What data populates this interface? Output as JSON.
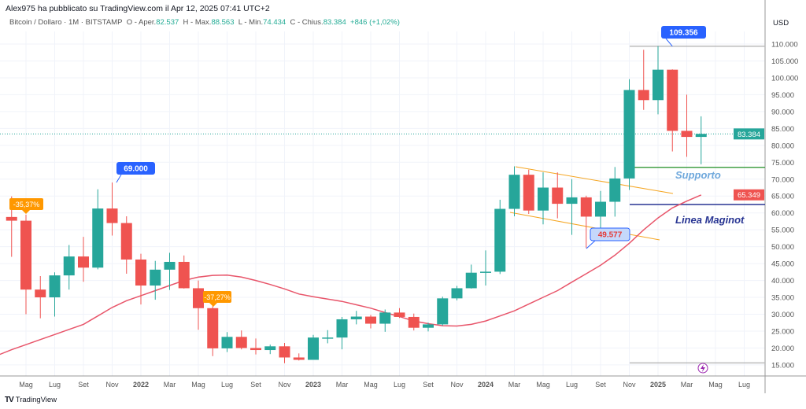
{
  "header": {
    "published": "Alex975 ha pubblicato su TradingView.com il Apr 12, 2025 07:41 UTC+2",
    "symbol": "Bitcoin / Dollaro · 1M · BITSTAMP",
    "open_label": "O - Aper.",
    "open": "82.537",
    "high_label": "H - Max.",
    "high": "88.563",
    "low_label": "L - Min.",
    "low": "74.434",
    "close_label": "C - Chius.",
    "close": "83.384",
    "change": "+846 (+1,02%)"
  },
  "branding": {
    "logo": "TradingView"
  },
  "colors": {
    "up": "#26a69a",
    "down": "#ef5350",
    "ma": "#e8556a",
    "accent": "#2962ff"
  },
  "chart_data": {
    "type": "candlestick",
    "currency": "USD",
    "ylim": [
      15000,
      110000
    ],
    "yticks": [
      "110.000",
      "105.000",
      "100.000",
      "95.000",
      "90.000",
      "85.000",
      "80.000",
      "75.000",
      "70.000",
      "65.000",
      "60.000",
      "55.000",
      "50.000",
      "45.000",
      "40.000",
      "35.000",
      "30.000",
      "25.000",
      "20.000",
      "15.000"
    ],
    "xticks": [
      [
        "Mag",
        0
      ],
      [
        "Lug",
        2
      ],
      [
        "Set",
        4
      ],
      [
        "Nov",
        6
      ],
      [
        "2022",
        8
      ],
      [
        "Mar",
        10
      ],
      [
        "Mag",
        12
      ],
      [
        "Lug",
        14
      ],
      [
        "Set",
        16
      ],
      [
        "Nov",
        18
      ],
      [
        "2023",
        20
      ],
      [
        "Mar",
        22
      ],
      [
        "Mag",
        24
      ],
      [
        "Lug",
        26
      ],
      [
        "Set",
        28
      ],
      [
        "Nov",
        30
      ],
      [
        "2024",
        32
      ],
      [
        "Mar",
        34
      ],
      [
        "Mag",
        36
      ],
      [
        "Lug",
        38
      ],
      [
        "Set",
        40
      ],
      [
        "Nov",
        42
      ],
      [
        "2025",
        44
      ],
      [
        "Mar",
        46
      ],
      [
        "Mag",
        48
      ],
      [
        "Lug",
        50
      ]
    ],
    "candles_start": -1,
    "ohlc": [
      [
        58.8,
        64.9,
        47.0,
        57.7
      ],
      [
        57.7,
        59.5,
        30.0,
        37.3
      ],
      [
        37.3,
        41.3,
        28.8,
        35.0
      ],
      [
        35.0,
        42.4,
        29.3,
        41.5
      ],
      [
        41.5,
        50.5,
        37.3,
        47.1
      ],
      [
        47.1,
        52.9,
        39.6,
        43.8
      ],
      [
        43.8,
        67.0,
        43.3,
        61.3
      ],
      [
        61.3,
        69.0,
        53.3,
        57.0
      ],
      [
        57.0,
        59.0,
        42.0,
        46.2
      ],
      [
        46.2,
        47.9,
        32.9,
        38.5
      ],
      [
        38.5,
        45.8,
        34.3,
        43.2
      ],
      [
        43.2,
        48.2,
        37.2,
        45.5
      ],
      [
        45.5,
        47.4,
        37.6,
        37.7
      ],
      [
        37.7,
        40.0,
        25.4,
        31.8
      ],
      [
        31.8,
        32.4,
        17.6,
        19.9
      ],
      [
        19.9,
        24.7,
        18.8,
        23.3
      ],
      [
        23.3,
        25.2,
        19.6,
        20.0
      ],
      [
        20.0,
        22.8,
        18.1,
        19.4
      ],
      [
        19.4,
        21.0,
        18.2,
        20.5
      ],
      [
        20.5,
        21.5,
        15.5,
        17.2
      ],
      [
        17.2,
        18.4,
        16.3,
        16.5
      ],
      [
        16.5,
        23.9,
        16.5,
        23.1
      ],
      [
        23.1,
        25.3,
        21.4,
        23.1
      ],
      [
        23.1,
        29.2,
        19.6,
        28.5
      ],
      [
        28.5,
        31.0,
        27.0,
        29.3
      ],
      [
        29.3,
        29.8,
        25.8,
        27.2
      ],
      [
        27.2,
        31.4,
        24.8,
        30.5
      ],
      [
        30.5,
        31.8,
        28.9,
        29.2
      ],
      [
        29.2,
        30.2,
        25.2,
        26.0
      ],
      [
        26.0,
        27.5,
        24.9,
        27.0
      ],
      [
        27.0,
        35.2,
        26.6,
        34.7
      ],
      [
        34.7,
        38.4,
        34.1,
        37.7
      ],
      [
        37.7,
        44.7,
        37.6,
        42.3
      ],
      [
        42.3,
        48.9,
        38.5,
        42.6
      ],
      [
        42.6,
        63.9,
        41.9,
        61.2
      ],
      [
        61.2,
        73.8,
        59.0,
        71.3
      ],
      [
        71.3,
        72.8,
        59.7,
        60.7
      ],
      [
        60.7,
        72.0,
        56.6,
        67.5
      ],
      [
        67.5,
        72.0,
        58.4,
        62.7
      ],
      [
        62.7,
        70.0,
        53.5,
        64.6
      ],
      [
        64.6,
        65.1,
        49.6,
        58.9
      ],
      [
        58.9,
        66.5,
        52.6,
        63.3
      ],
      [
        63.3,
        73.6,
        58.9,
        70.2
      ],
      [
        70.2,
        99.6,
        66.8,
        96.4
      ],
      [
        96.4,
        108.3,
        90.5,
        93.4
      ],
      [
        93.4,
        109.4,
        89.2,
        102.4
      ],
      [
        102.4,
        102.5,
        78.2,
        84.3
      ],
      [
        84.3,
        95.0,
        76.6,
        82.5
      ],
      [
        82.5,
        88.6,
        74.4,
        83.4
      ]
    ],
    "ma_start": -2,
    "ma": [
      17.8,
      19.5,
      21,
      22.5,
      24,
      25.5,
      27,
      29.5,
      32,
      34,
      35.5,
      37,
      38.5,
      40,
      41,
      41.5,
      41.6,
      41,
      40,
      38.8,
      37.5,
      36,
      35.2,
      34.5,
      33.8,
      32.8,
      31.8,
      30.5,
      29.3,
      28,
      27.2,
      26.6,
      26.5,
      27,
      28,
      29.5,
      31,
      33,
      35,
      37,
      39.5,
      42,
      44.5,
      47.5,
      51,
      55,
      58.5,
      61.5,
      63.5,
      65.3
    ],
    "price_labels": {
      "last": "83.384",
      "ma": "65.349"
    },
    "annotations": {
      "high_2021": "69.000",
      "high_2025": "109.356",
      "low_2024": "49.577",
      "drop1": "-35,37%",
      "drop2": "-37,27%",
      "support": "Supporto",
      "maginot": "Linea Maginot"
    },
    "levels": {
      "support": 73500,
      "maginot": 62500,
      "top": 109356,
      "bottom": 15600
    }
  }
}
